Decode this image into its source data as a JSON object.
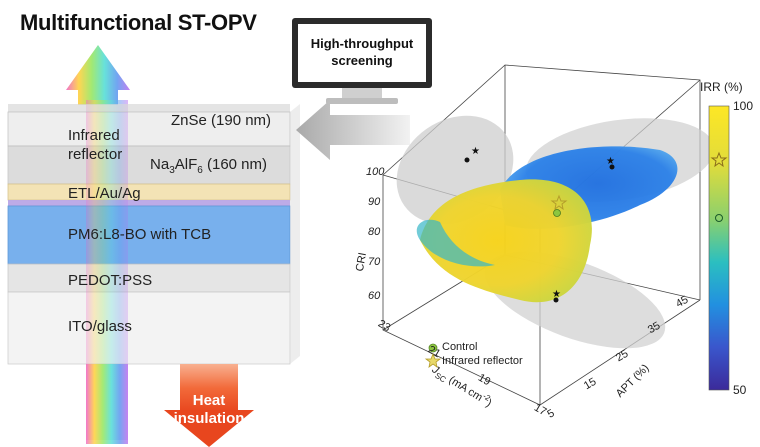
{
  "title": "Multifunctional ST-OPV",
  "layers": {
    "infrared_reflector": "Infrared\nreflector",
    "znse": "ZnSe (190 nm)",
    "na3alf6_prefix": "Na",
    "na3alf6_sub1": "3",
    "na3alf6_mid": "AlF",
    "na3alf6_sub2": "6",
    "na3alf6_suffix": " (160 nm)",
    "etl": "ETL/Au/Ag",
    "active": "PM6:L8-BO with TCB",
    "pedot": "PEDOT:PSS",
    "ito": "ITO/glass"
  },
  "monitor": {
    "line1": "High-throughput",
    "line2": "screening"
  },
  "heat": {
    "line1": "Heat",
    "line2": "insulation"
  },
  "plot": {
    "z_label": "CRI",
    "x_label_main": "APT (%)",
    "y_label_main": "J",
    "y_label_sub": "SC",
    "y_label_unit": " (mA cm",
    "y_label_sup": "-2",
    "y_label_close": ")",
    "z_ticks": [
      "100",
      "90",
      "80",
      "70",
      "60"
    ],
    "apt_ticks": [
      "45",
      "35",
      "25",
      "15",
      "5"
    ],
    "jsc_ticks": [
      "23",
      "21",
      "19",
      "17"
    ],
    "legend": [
      {
        "label": "Control",
        "marker": "circle",
        "color": "#8dc63f"
      },
      {
        "label": "Infrared reflector",
        "marker": "star",
        "color": "#c9b84a"
      }
    ]
  },
  "colorbar": {
    "title": "IRR (%)",
    "max": "100",
    "min": "50",
    "colors": [
      "#fde725",
      "#f0e02a",
      "#c8dc3c",
      "#6fcf7a",
      "#2bb7c4",
      "#1f8fe0",
      "#2e6bd8",
      "#3a3fc0",
      "#3b2a9a"
    ]
  }
}
